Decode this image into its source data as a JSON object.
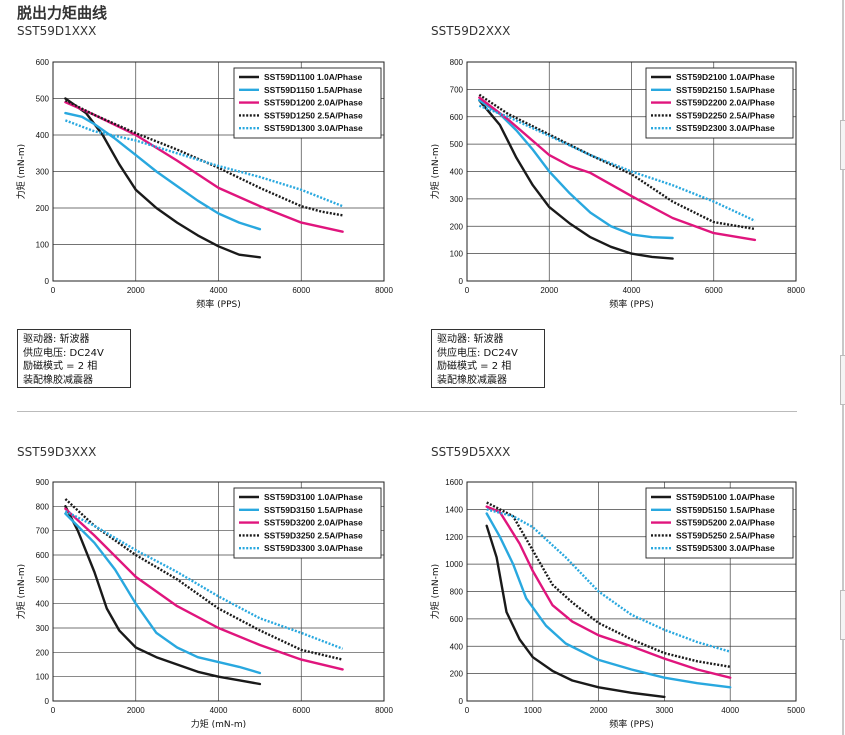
{
  "page": {
    "title": "脱出力矩曲线"
  },
  "info_box": {
    "lines": [
      "驱动器: 斩波器",
      "供应电压: DC24V",
      "励磁模式 = 2 相",
      "装配橡胶减震器"
    ]
  },
  "series_styles": [
    {
      "color": "#1a1a1a",
      "dash": "solid"
    },
    {
      "color": "#29a8df",
      "dash": "solid"
    },
    {
      "color": "#e0157d",
      "dash": "solid"
    },
    {
      "color": "#1a1a1a",
      "dash": "dotted"
    },
    {
      "color": "#29a8df",
      "dash": "dotted"
    }
  ],
  "chart_data": [
    {
      "type": "line",
      "title": "SST59D1XXX",
      "xlabel": "频率 (PPS)",
      "ylabel": "力矩 (mN-m)",
      "xlim": [
        0,
        8000
      ],
      "ylim": [
        0,
        600
      ],
      "xticks": [
        0,
        2000,
        4000,
        6000,
        8000
      ],
      "yticks": [
        0,
        100,
        200,
        300,
        400,
        500,
        600
      ],
      "grid": true,
      "legend": "top-right",
      "series": [
        {
          "name": "SST59D1100  1.0A/Phase",
          "x": [
            300,
            800,
            1200,
            1600,
            2000,
            2500,
            3000,
            3500,
            4000,
            4500,
            5000
          ],
          "y": [
            500,
            460,
            400,
            320,
            250,
            200,
            160,
            125,
            95,
            72,
            65
          ]
        },
        {
          "name": "SST59D1150  1.5A/Phase",
          "x": [
            300,
            700,
            1000,
            1500,
            2000,
            2500,
            3000,
            3500,
            4000,
            4500,
            5000
          ],
          "y": [
            460,
            450,
            430,
            390,
            345,
            300,
            260,
            220,
            185,
            160,
            142
          ]
        },
        {
          "name": "SST59D1200  2.0A/Phase",
          "x": [
            300,
            1000,
            2000,
            3000,
            4000,
            5000,
            6000,
            7000
          ],
          "y": [
            490,
            455,
            400,
            330,
            255,
            205,
            160,
            135
          ]
        },
        {
          "name": "SST59D1250  2.5A/Phase",
          "x": [
            300,
            1000,
            2000,
            3000,
            4000,
            5000,
            6000,
            6500,
            7000
          ],
          "y": [
            495,
            455,
            405,
            360,
            310,
            255,
            205,
            190,
            180
          ]
        },
        {
          "name": "SST59D1300  3.0A/Phase",
          "x": [
            300,
            1000,
            2000,
            3000,
            4000,
            5000,
            6000,
            7000
          ],
          "y": [
            440,
            410,
            385,
            350,
            315,
            285,
            250,
            205
          ]
        }
      ]
    },
    {
      "type": "line",
      "title": "SST59D2XXX",
      "xlabel": "频率 (PPS)",
      "ylabel": "力矩 (mN-m)",
      "xlim": [
        0,
        8000
      ],
      "ylim": [
        0,
        800
      ],
      "xticks": [
        0,
        2000,
        4000,
        6000,
        8000
      ],
      "yticks": [
        0,
        100,
        200,
        300,
        400,
        500,
        600,
        700,
        800
      ],
      "grid": true,
      "legend": "top-right",
      "series": [
        {
          "name": "SST59D2100  1.0A/Phase",
          "x": [
            300,
            800,
            1200,
            1600,
            2000,
            2500,
            3000,
            3500,
            4000,
            4500,
            5000
          ],
          "y": [
            660,
            570,
            450,
            350,
            270,
            210,
            160,
            125,
            100,
            88,
            82
          ]
        },
        {
          "name": "SST59D2150  1.5A/Phase",
          "x": [
            300,
            800,
            1200,
            1600,
            2000,
            2500,
            3000,
            3500,
            4000,
            4500,
            5000
          ],
          "y": [
            660,
            610,
            550,
            480,
            400,
            320,
            250,
            200,
            170,
            160,
            157
          ]
        },
        {
          "name": "SST59D2200  2.0A/Phase",
          "x": [
            300,
            1000,
            2000,
            2500,
            3000,
            4000,
            5000,
            6000,
            7000
          ],
          "y": [
            670,
            590,
            460,
            420,
            395,
            310,
            230,
            175,
            150
          ]
        },
        {
          "name": "SST59D2250  2.5A/Phase",
          "x": [
            300,
            1000,
            2000,
            3000,
            4000,
            5000,
            6000,
            7000
          ],
          "y": [
            680,
            610,
            535,
            460,
            390,
            290,
            215,
            190
          ]
        },
        {
          "name": "SST59D2300  3.0A/Phase",
          "x": [
            300,
            1000,
            2000,
            3000,
            4000,
            5000,
            6000,
            7000
          ],
          "y": [
            640,
            600,
            530,
            460,
            400,
            350,
            290,
            220
          ]
        }
      ]
    },
    {
      "type": "line",
      "title": "SST59D3XXX",
      "xlabel": "力矩 (mN-m)",
      "ylabel": "力矩 (mN-m)",
      "xlim": [
        0,
        8000
      ],
      "ylim": [
        0,
        900
      ],
      "xticks": [
        0,
        2000,
        4000,
        6000,
        8000
      ],
      "yticks": [
        0,
        100,
        200,
        300,
        400,
        500,
        600,
        700,
        800,
        900
      ],
      "grid": true,
      "legend": "top-right",
      "series": [
        {
          "name": "SST59D3100  1.0A/Phase",
          "x": [
            300,
            600,
            1000,
            1300,
            1600,
            2000,
            2500,
            3000,
            3500,
            4000,
            4500,
            5000
          ],
          "y": [
            800,
            700,
            530,
            380,
            290,
            220,
            180,
            150,
            120,
            100,
            85,
            70
          ]
        },
        {
          "name": "SST59D3150  1.5A/Phase",
          "x": [
            300,
            1000,
            1500,
            2000,
            2500,
            3000,
            3500,
            4000,
            4500,
            5000
          ],
          "y": [
            770,
            650,
            540,
            400,
            280,
            220,
            180,
            160,
            140,
            115
          ]
        },
        {
          "name": "SST59D3200  2.0A/Phase",
          "x": [
            300,
            1000,
            2000,
            3000,
            4000,
            5000,
            6000,
            7000
          ],
          "y": [
            790,
            680,
            510,
            390,
            300,
            230,
            170,
            130
          ]
        },
        {
          "name": "SST59D3250  2.5A/Phase",
          "x": [
            300,
            1000,
            2000,
            3000,
            4000,
            5000,
            6000,
            7000
          ],
          "y": [
            830,
            720,
            600,
            500,
            380,
            290,
            210,
            170
          ]
        },
        {
          "name": "SST59D3300  3.0A/Phase",
          "x": [
            300,
            1000,
            2000,
            3000,
            4000,
            5000,
            6000,
            7000
          ],
          "y": [
            780,
            720,
            620,
            530,
            430,
            340,
            280,
            215
          ]
        }
      ]
    },
    {
      "type": "line",
      "title": "SST59D5XXX",
      "xlabel": "频率 (PPS)",
      "ylabel": "力矩 (mN-m)",
      "xlim": [
        0,
        5000
      ],
      "ylim": [
        0,
        1600
      ],
      "xticks": [
        0,
        1000,
        2000,
        3000,
        4000,
        5000
      ],
      "yticks": [
        0,
        200,
        400,
        600,
        800,
        1000,
        1200,
        1400,
        1600
      ],
      "grid": true,
      "legend": "top-right",
      "series": [
        {
          "name": "SST59D5100  1.0A/Phase",
          "x": [
            300,
            450,
            600,
            800,
            1000,
            1300,
            1600,
            2000,
            2500,
            3000
          ],
          "y": [
            1280,
            1050,
            650,
            450,
            320,
            220,
            150,
            100,
            60,
            30
          ]
        },
        {
          "name": "SST59D5150  1.5A/Phase",
          "x": [
            300,
            500,
            700,
            900,
            1200,
            1500,
            2000,
            2500,
            3000,
            3500,
            4000
          ],
          "y": [
            1370,
            1200,
            1000,
            750,
            550,
            420,
            300,
            230,
            170,
            130,
            100
          ]
        },
        {
          "name": "SST59D5200  2.0A/Phase",
          "x": [
            300,
            500,
            800,
            1000,
            1300,
            1600,
            2000,
            2500,
            3000,
            3500,
            4000
          ],
          "y": [
            1420,
            1380,
            1150,
            950,
            700,
            580,
            480,
            400,
            310,
            230,
            170
          ]
        },
        {
          "name": "SST59D5250  2.5A/Phase",
          "x": [
            300,
            700,
            1000,
            1300,
            1600,
            2000,
            2500,
            3000,
            3500,
            4000
          ],
          "y": [
            1450,
            1350,
            1100,
            850,
            720,
            570,
            450,
            350,
            290,
            250
          ]
        },
        {
          "name": "SST59D5300  3.0A/Phase",
          "x": [
            300,
            700,
            1000,
            1500,
            2000,
            2500,
            3000,
            3500,
            4000
          ],
          "y": [
            1400,
            1350,
            1270,
            1050,
            800,
            630,
            520,
            430,
            360
          ]
        }
      ]
    }
  ]
}
